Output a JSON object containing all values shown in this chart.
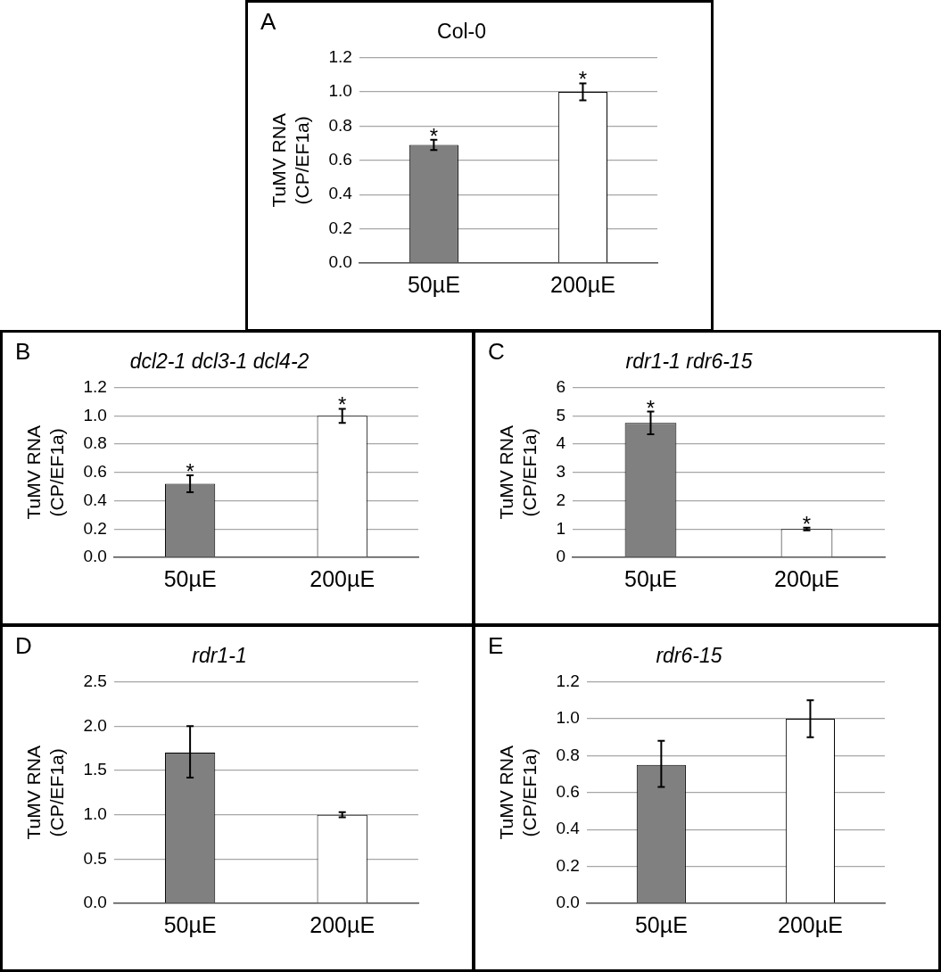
{
  "chart_data": [
    {
      "type": "bar",
      "title": "Col-0",
      "ylabel": "TuMV RNA\n(CP/EF1a)",
      "categories": [
        "50µE",
        "200µE"
      ],
      "values": [
        0.69,
        1.0
      ],
      "colors": [
        "#808080",
        "#ffffff"
      ],
      "errors": [
        0.03,
        0.05
      ],
      "ylim": [
        0,
        1.2
      ],
      "yticks": [
        {
          "value": 0,
          "label": "0.0"
        },
        0.2,
        0.4,
        0.6,
        0.8,
        {
          "value": 1,
          "label": "1.0"
        },
        1.2
      ],
      "grid": "y",
      "legend": false,
      "annotations": [
        "A",
        {
          "text": "*",
          "x": "50µE",
          "y": 0.72
        },
        {
          "text": "*",
          "x": "200µE",
          "y": 1.05
        }
      ]
    },
    {
      "type": "bar",
      "title": "dcl2-1 dcl3-1 dcl4-2",
      "ylabel": "TuMV RNA\n(CP/EF1a)",
      "categories": [
        "50µE",
        "200µE"
      ],
      "values": [
        0.52,
        1.0
      ],
      "colors": [
        "#808080",
        "#ffffff"
      ],
      "errors": [
        0.06,
        0.05
      ],
      "ylim": [
        0,
        1.2
      ],
      "yticks": [
        {
          "value": 0,
          "label": "0.0"
        },
        0.2,
        0.4,
        0.6,
        0.8,
        {
          "value": 1,
          "label": "1.0"
        },
        1.2
      ],
      "grid": "y",
      "legend": false,
      "annotations": [
        "B",
        {
          "text": "*",
          "x": "50µE",
          "y": 0.58
        },
        {
          "text": "*",
          "x": "200µE",
          "y": 1.05
        }
      ]
    },
    {
      "type": "bar",
      "title": "rdr1-1 rdr6-15",
      "ylabel": "TuMV RNA\n(CP/EF1a)",
      "categories": [
        "50µE",
        "200µE"
      ],
      "values": [
        4.75,
        1.0
      ],
      "colors": [
        "#808080",
        "#ffffff"
      ],
      "errors": [
        0.4,
        0.05
      ],
      "ylim": [
        0,
        6
      ],
      "yticks": [
        0,
        1,
        2,
        3,
        4,
        5,
        6
      ],
      "grid": "y",
      "legend": false,
      "annotations": [
        "C",
        {
          "text": "*",
          "x": "50µE",
          "y": 5.15
        },
        {
          "text": "*",
          "x": "200µE",
          "y": 1.05
        }
      ]
    },
    {
      "type": "bar",
      "title": "rdr1-1",
      "ylabel": "TuMV RNA\n(CP/EF1a)",
      "categories": [
        "50µE",
        "200µE"
      ],
      "values": [
        1.7,
        1.0
      ],
      "colors": [
        "#808080",
        "#ffffff"
      ],
      "errors": [
        [
          1.42,
          2.0
        ],
        0.03
      ],
      "ylim": [
        0,
        2.5
      ],
      "yticks": [
        {
          "value": 0,
          "label": "0.0"
        },
        0.5,
        {
          "value": 1,
          "label": "1.0"
        },
        1.5,
        {
          "value": 2,
          "label": "2.0"
        },
        2.5
      ],
      "grid": "y",
      "legend": false,
      "annotations": [
        "D"
      ]
    },
    {
      "type": "bar",
      "title": "rdr6-15",
      "ylabel": "TuMV RNA\n(CP/EF1a)",
      "categories": [
        "50µE",
        "200µE"
      ],
      "values": [
        0.75,
        1.0
      ],
      "colors": [
        "#808080",
        "#ffffff"
      ],
      "errors": [
        [
          0.63,
          0.88
        ],
        [
          0.9,
          1.1
        ]
      ],
      "ylim": [
        0,
        1.2
      ],
      "yticks": [
        {
          "value": 0,
          "label": "0.0"
        },
        0.2,
        0.4,
        0.6,
        0.8,
        {
          "value": 1,
          "label": "1.0"
        },
        1.2
      ],
      "grid": "y",
      "legend": false,
      "annotations": [
        "E"
      ]
    }
  ]
}
